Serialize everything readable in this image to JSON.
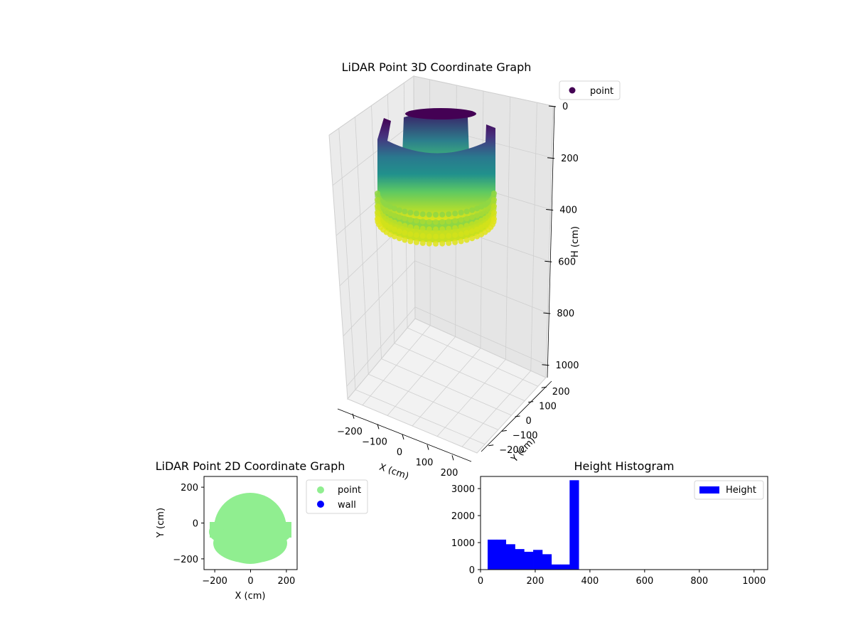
{
  "chart_data": [
    {
      "type": "scatter",
      "projection": "3d",
      "title": "LiDAR Point 3D Coordinate Graph",
      "xlabel": "X (cm)",
      "ylabel": "Y (cm)",
      "zlabel": "H (cm)",
      "xticks": [
        -200,
        -100,
        0,
        100,
        200
      ],
      "yticks": [
        -200,
        -100,
        0,
        100,
        200
      ],
      "zticks": [
        0,
        200,
        400,
        600,
        800,
        1000
      ],
      "xlim": [
        -260,
        260
      ],
      "ylim": [
        -260,
        260
      ],
      "zlim": [
        0,
        1050
      ],
      "z_inverted": true,
      "legend": [
        {
          "label": "point",
          "color": "#440154"
        }
      ],
      "colormap": "viridis",
      "series": [
        {
          "name": "point",
          "shape": "cylindrical wall ring with frontal gap",
          "radius": 200,
          "h_range": [
            0,
            360
          ]
        }
      ]
    },
    {
      "type": "scatter",
      "title": "LiDAR Point 2D Coordinate Graph",
      "xlabel": "X (cm)",
      "ylabel": "Y (cm)",
      "xticks": [
        -200,
        0,
        200
      ],
      "yticks": [
        -200,
        0,
        200
      ],
      "xlim": [
        -260,
        260
      ],
      "ylim": [
        -260,
        260
      ],
      "legend": [
        {
          "label": "point",
          "color": "#90ee90"
        },
        {
          "label": "wall",
          "color": "#0000ff"
        }
      ],
      "series": [
        {
          "name": "point",
          "color": "#90ee90",
          "shape": "filled disc",
          "center": [
            0,
            -30
          ],
          "radius": 200
        },
        {
          "name": "wall",
          "color": "#0000ff",
          "count": 0
        }
      ]
    },
    {
      "type": "bar",
      "subtype": "histogram",
      "title": "Height Histogram",
      "xlabel": "",
      "ylabel": "",
      "xticks": [
        0,
        200,
        400,
        600,
        800,
        1000
      ],
      "yticks": [
        0,
        1000,
        2000,
        3000
      ],
      "xlim": [
        0,
        1050
      ],
      "ylim": [
        0,
        3450
      ],
      "legend": [
        {
          "label": "Height",
          "color": "#0000ff"
        }
      ],
      "bin_width": 33.3,
      "bins": [
        {
          "x0": 26,
          "count": 1110
        },
        {
          "x0": 59.3,
          "count": 1110
        },
        {
          "x0": 92.6,
          "count": 940
        },
        {
          "x0": 125.9,
          "count": 760
        },
        {
          "x0": 159.2,
          "count": 660
        },
        {
          "x0": 192.5,
          "count": 730
        },
        {
          "x0": 225.8,
          "count": 570
        },
        {
          "x0": 259.1,
          "count": 190
        },
        {
          "x0": 292.4,
          "count": 190
        },
        {
          "x0": 325.7,
          "count": 3310
        }
      ]
    }
  ]
}
